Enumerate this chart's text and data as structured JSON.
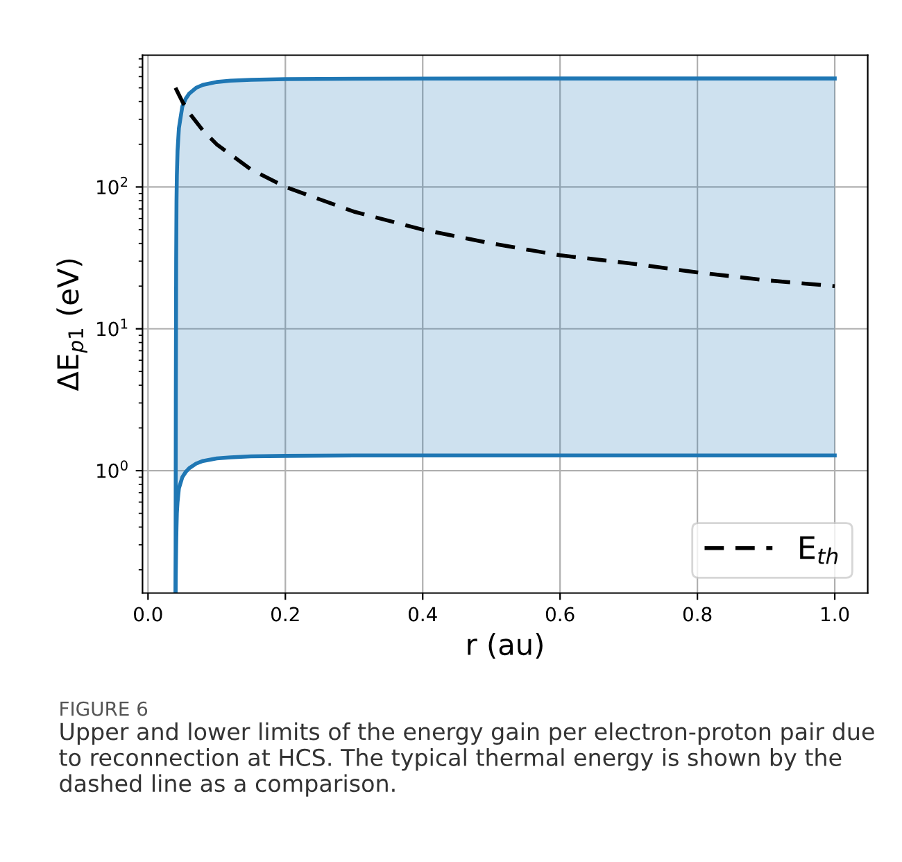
{
  "chart_data": {
    "type": "line",
    "xlabel": "r (au)",
    "ylabel": "ΔE$_{p1}$ (eV)",
    "x": [
      0.0401,
      0.0405,
      0.041,
      0.0415,
      0.042,
      0.043,
      0.045,
      0.05,
      0.055,
      0.06,
      0.07,
      0.08,
      0.1,
      0.12,
      0.15,
      0.2,
      0.3,
      0.4,
      0.6,
      0.8,
      1.0
    ],
    "series": [
      {
        "color": "#1f77b4",
        "values": [
          0.14,
          0.2,
          0.3,
          0.4,
          0.5,
          0.6,
          0.75,
          0.9,
          0.98,
          1.04,
          1.12,
          1.17,
          1.22,
          1.24,
          1.26,
          1.27,
          1.28,
          1.28,
          1.28,
          1.28,
          1.28
        ]
      },
      {
        "color": "#1f77b4",
        "values": [
          0.14,
          3,
          30,
          80,
          120,
          180,
          260,
          370,
          420,
          455,
          500,
          525,
          550,
          562,
          570,
          576,
          580,
          581,
          582,
          582,
          582
        ],
        "lower": [
          0.14,
          0.2,
          0.3,
          0.4,
          0.5,
          0.6,
          0.75,
          0.9,
          0.98,
          1.04,
          1.12,
          1.17,
          1.22,
          1.24,
          1.26,
          1.27,
          1.28,
          1.28,
          1.28,
          1.28,
          1.28
        ],
        "upper": [
          0.14,
          3,
          30,
          80,
          120,
          180,
          260,
          370,
          420,
          455,
          500,
          525,
          550,
          562,
          570,
          576,
          580,
          581,
          582,
          582,
          582
        ]
      },
      {
        "name": "E$_{th}$",
        "color": "#000000",
        "line_style": "dashed",
        "x": [
          0.04,
          0.05,
          0.06,
          0.08,
          0.1,
          0.15,
          0.2,
          0.3,
          0.4,
          0.5,
          0.6,
          0.7,
          0.8,
          0.9,
          1.0
        ],
        "values": [
          500,
          400,
          333,
          250,
          200,
          133,
          100,
          67,
          50,
          40,
          33,
          29,
          25,
          22,
          20
        ]
      }
    ],
    "xlim": [
      -0.008,
      1.048
    ],
    "xticks": [
      {
        "value": 0.0,
        "label": "0.0"
      },
      0.2,
      0.4,
      0.6,
      0.8,
      {
        "value": 1.0,
        "label": "1.0"
      }
    ],
    "log": "y",
    "ylim": [
      0.137,
      850
    ],
    "yticks": [
      {
        "value": 1,
        "label": "10$^{0}$"
      },
      {
        "value": 10,
        "label": "10$^{1}$"
      },
      {
        "value": 100,
        "label": "10$^{2}$"
      }
    ],
    "grid": true,
    "legend": "bottom right",
    "annotations": [
      "FIGURE 6",
      "Upper and lower limits of the energy gain per electron-proton pair due to reconnection at HCS. The typical thermal energy is shown by the dashed line as a comparison."
    ]
  }
}
